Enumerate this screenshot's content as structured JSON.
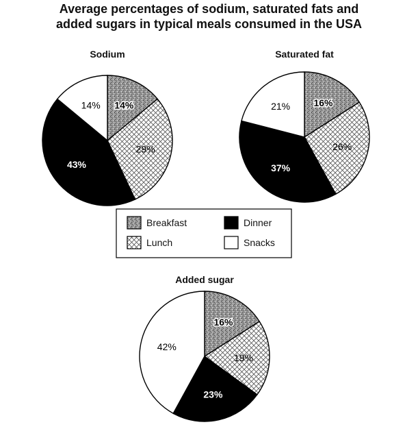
{
  "title_lines": [
    "Average percentages of sodium, saturated fats and",
    "added sugars in typical meals consumed in the USA"
  ],
  "colors": {
    "ink": "#000000",
    "paper": "#ffffff"
  },
  "chart_data": [
    {
      "type": "pie",
      "title": "Sodium",
      "categories": [
        "Breakfast",
        "Lunch",
        "Dinner",
        "Snacks"
      ],
      "values": [
        14,
        29,
        43,
        14
      ],
      "labels": [
        "14%",
        "29%",
        "43%",
        "14%"
      ]
    },
    {
      "type": "pie",
      "title": "Saturated fat",
      "categories": [
        "Breakfast",
        "Lunch",
        "Dinner",
        "Snacks"
      ],
      "values": [
        16,
        26,
        37,
        21
      ],
      "labels": [
        "16%",
        "26%",
        "37%",
        "21%"
      ]
    },
    {
      "type": "pie",
      "title": "Added sugar",
      "categories": [
        "Breakfast",
        "Lunch",
        "Dinner",
        "Snacks"
      ],
      "values": [
        16,
        19,
        23,
        42
      ],
      "labels": [
        "16%",
        "19%",
        "23%",
        "42%"
      ]
    }
  ],
  "legend": {
    "entries": [
      {
        "label": "Breakfast",
        "fill": "stipple"
      },
      {
        "label": "Lunch",
        "fill": "crosshatch"
      },
      {
        "label": "Dinner",
        "fill": "black"
      },
      {
        "label": "Snacks",
        "fill": "white"
      }
    ]
  }
}
